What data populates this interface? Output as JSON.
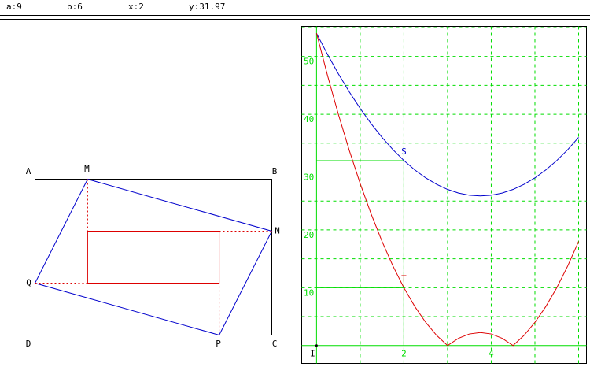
{
  "header": {
    "items": [
      {
        "label": "a:",
        "value": 9
      },
      {
        "label": "b:",
        "value": 6
      },
      {
        "label": "x:",
        "value": 2
      },
      {
        "label": "y:",
        "value": 31.97
      }
    ]
  },
  "figure": {
    "labels": {
      "A": "A",
      "B": "B",
      "C": "C",
      "D": "D",
      "M": "M",
      "N": "N",
      "P": "P",
      "Q": "Q"
    }
  },
  "chart_data": {
    "type": "line",
    "x": [
      0,
      0.25,
      0.5,
      0.75,
      1,
      1.25,
      1.5,
      1.75,
      2,
      2.25,
      2.5,
      2.75,
      3,
      3.25,
      3.5,
      3.75,
      4,
      4.25,
      4.5,
      4.75,
      5,
      5.25,
      5.5,
      5.75,
      6
    ],
    "series": [
      {
        "color": "#0000cc",
        "values": [
          54,
          50.375,
          47,
          43.875,
          41,
          38.375,
          36,
          33.875,
          32,
          30.375,
          29,
          27.875,
          27,
          26.375,
          26,
          25.875,
          26,
          26.375,
          27,
          27.875,
          29,
          30.375,
          32,
          33.875,
          36
        ]
      },
      {
        "color": "#dd0000",
        "values": [
          54,
          46.75,
          40,
          33.75,
          28,
          22.75,
          18,
          13.75,
          10,
          6.75,
          4,
          1.75,
          0,
          1.25,
          2,
          2.25,
          2,
          1.25,
          0,
          1.75,
          4,
          6.75,
          10,
          13.75,
          18
        ]
      }
    ],
    "xlim": [
      -0.34,
      6.18
    ],
    "ylim": [
      -3.1,
      55.2
    ],
    "xticks": [
      {
        "value": 0,
        "label": "I"
      },
      2,
      4
    ],
    "yticks": [
      10,
      20,
      30,
      40,
      50
    ],
    "grid_x": [
      1,
      2,
      3,
      4,
      5,
      6
    ],
    "grid_y": [
      5,
      10,
      15,
      20,
      25,
      30,
      35,
      40,
      45,
      50,
      55
    ],
    "points": [
      {
        "label": "S",
        "series": 0,
        "y": 31.97
      },
      {
        "label": "T",
        "series": 1,
        "y": 10
      }
    ],
    "grid_color": "#00dd00"
  }
}
